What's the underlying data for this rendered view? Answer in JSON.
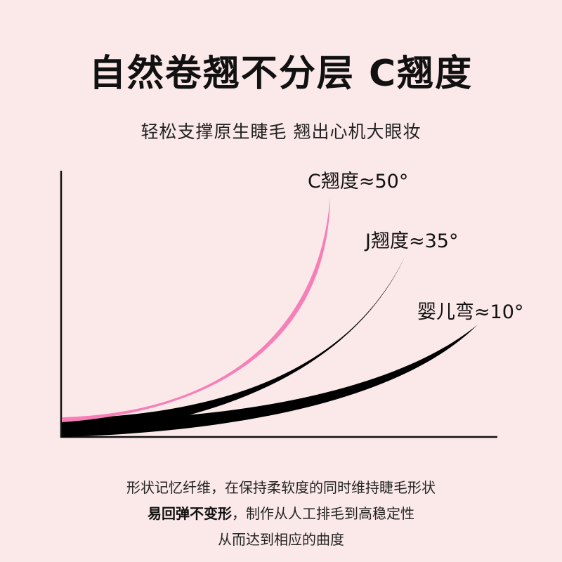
{
  "header": {
    "title": "自然卷翘不分层 C翘度",
    "subtitle": "轻松支撑原生睫毛 翘出心机大眼妆"
  },
  "curves": [
    {
      "label": "C翘度≈50°"
    },
    {
      "label": "J翘度≈35°"
    },
    {
      "label": "婴儿弯≈10°"
    }
  ],
  "description": {
    "lines": [
      {
        "text": "形状记忆纤维，在保持柔软度的同时维持睫毛形状"
      },
      {
        "bold": "易回弹不变形",
        "text": "，制作从人工排毛到高稳定性"
      },
      {
        "text": "从而达到相应的曲度"
      }
    ]
  }
}
